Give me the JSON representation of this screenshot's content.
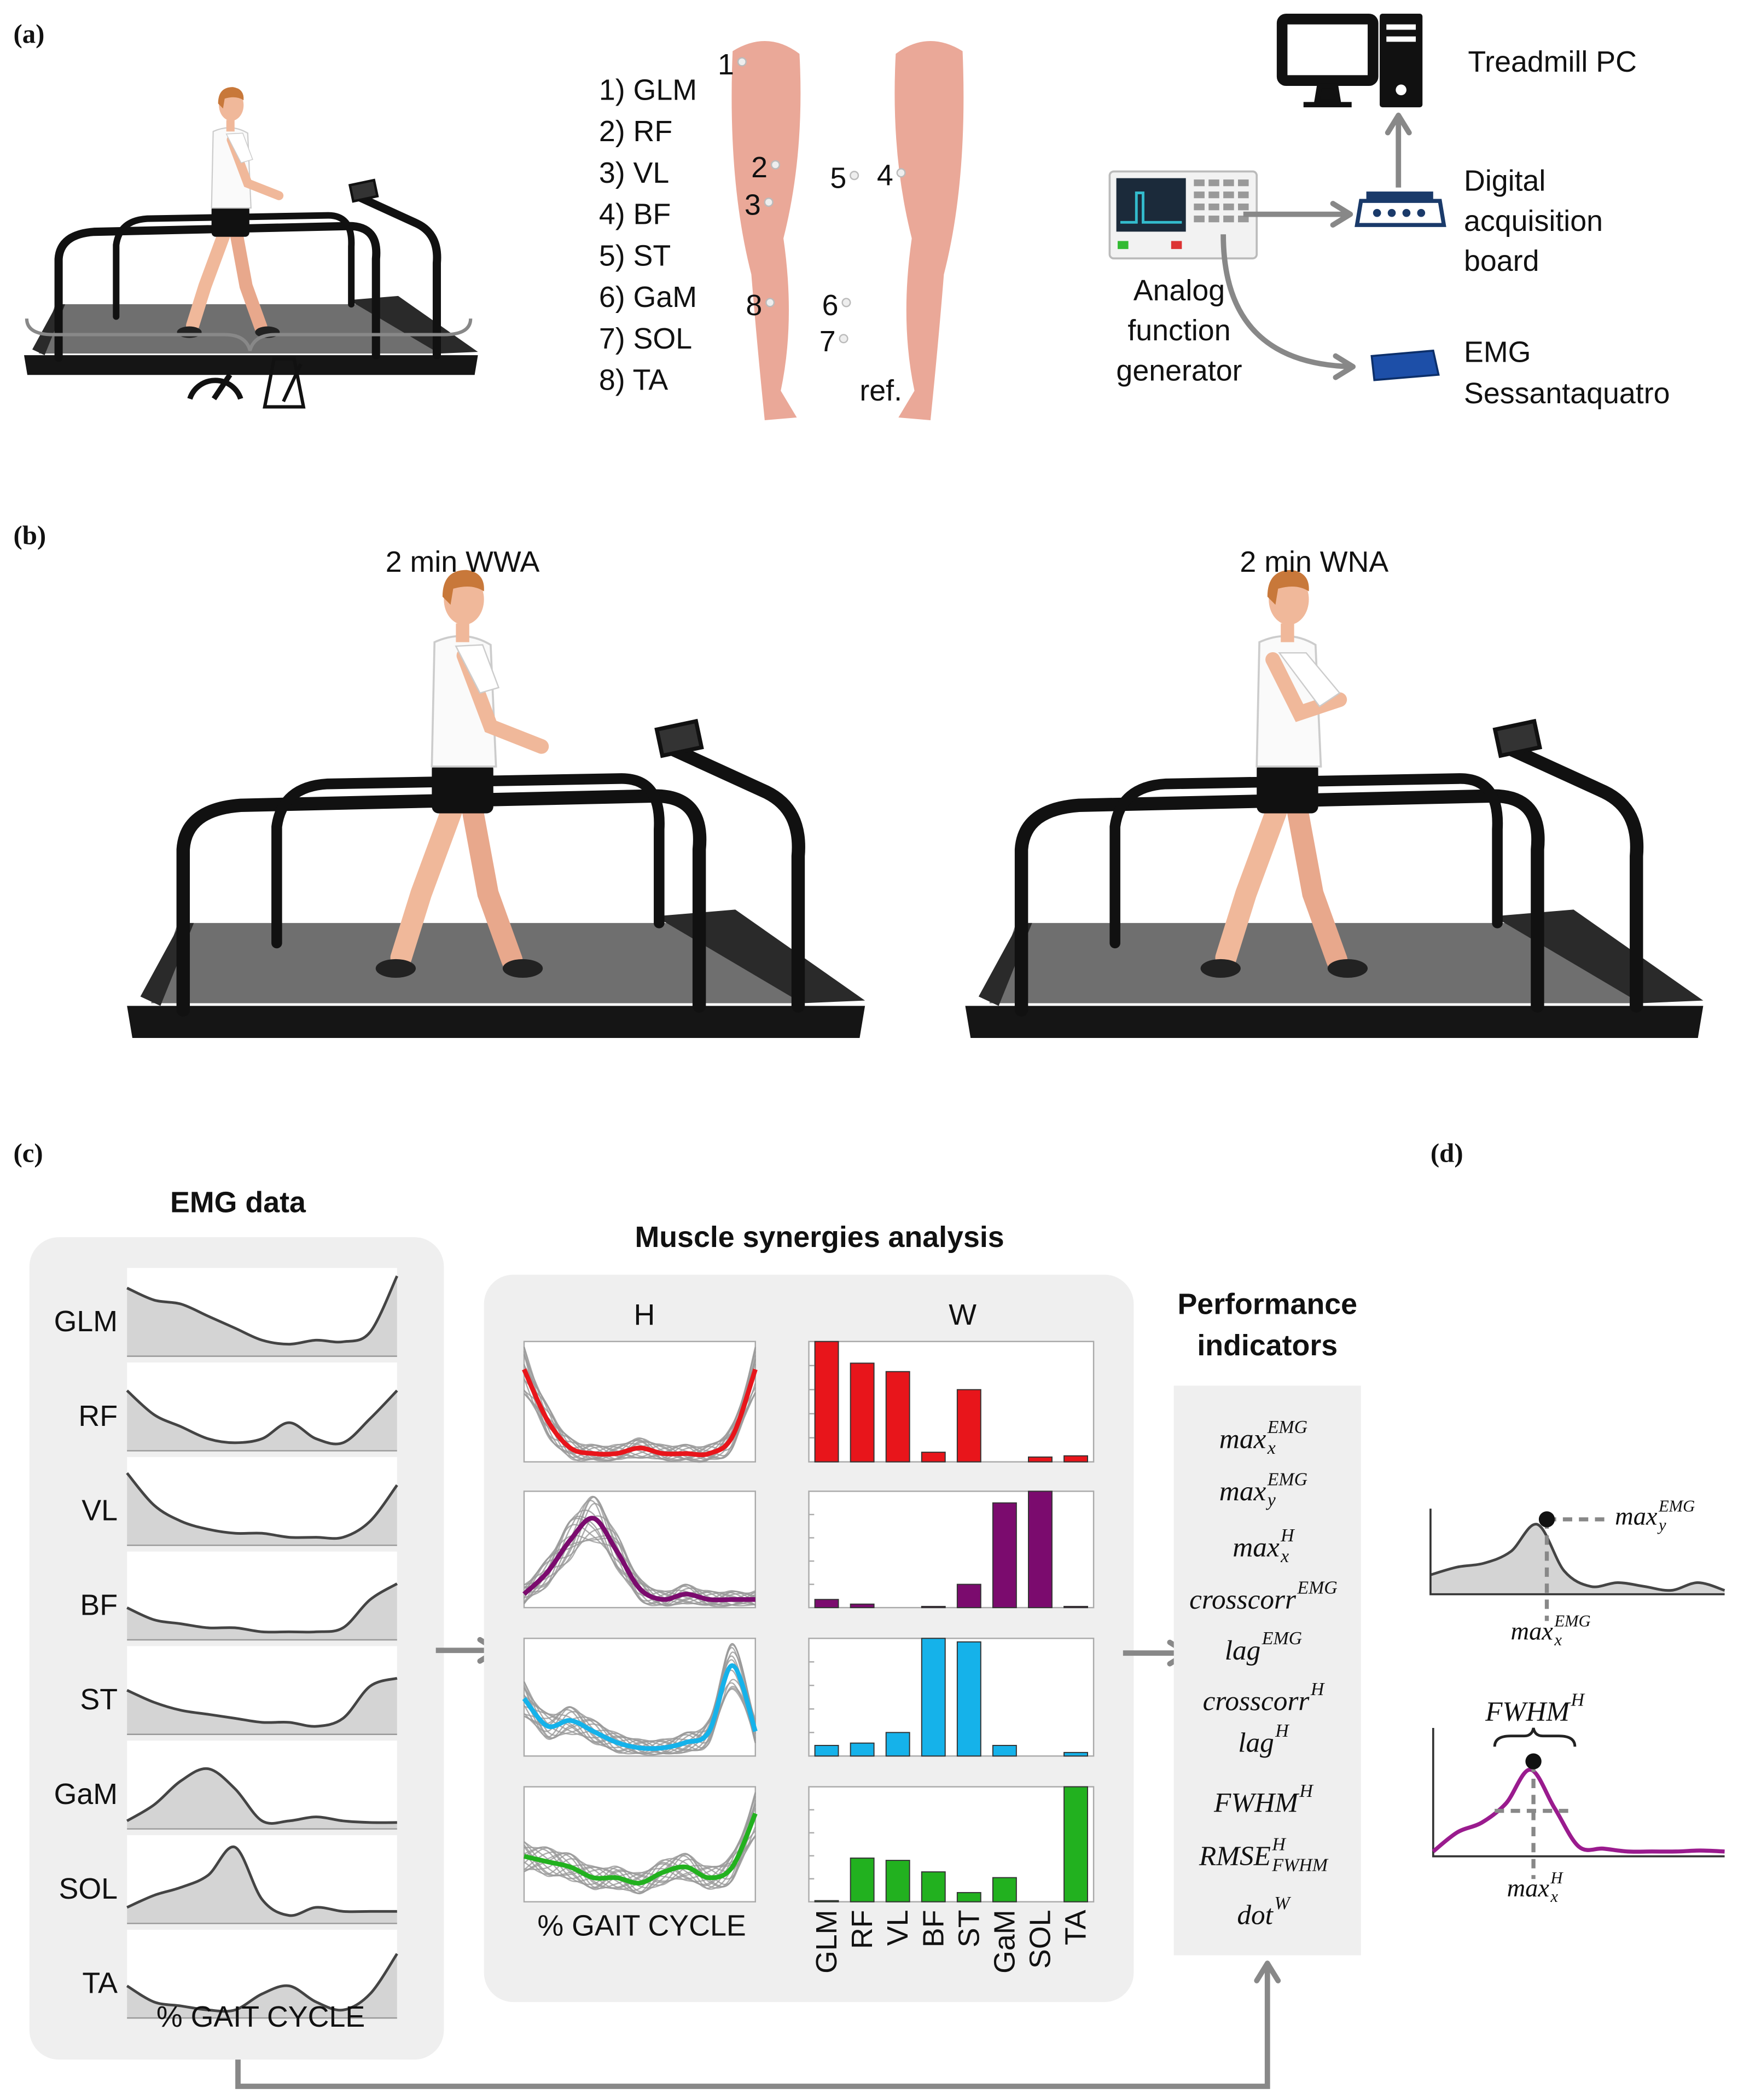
{
  "panels": {
    "a": "(a)",
    "b": "(b)",
    "c": "(c)",
    "d": "(d)"
  },
  "setup": {
    "muscles": [
      "1) GLM",
      "2) RF",
      "3) VL",
      "4) BF",
      "5) ST",
      "6) GaM",
      "7) SOL",
      "8) TA"
    ],
    "electrodes": [
      "1",
      "2",
      "3",
      "4",
      "5",
      "6",
      "7",
      "8"
    ],
    "reference": "ref.",
    "treadmill_pc": "Treadmill PC",
    "daq": [
      "Digital",
      "acquisition",
      "board"
    ],
    "generator": [
      "Analog",
      "function",
      "generator"
    ],
    "emg": [
      "EMG",
      "Sessantaquatro"
    ]
  },
  "conditions": [
    "2 min WWA",
    "2 min WNA"
  ],
  "emg_data": {
    "title": "EMG data",
    "muscles": [
      "GLM",
      "RF",
      "VL",
      "BF",
      "ST",
      "GaM",
      "SOL",
      "TA"
    ],
    "xlabel": "% GAIT CYCLE"
  },
  "synergies": {
    "title": "Muscle synergies analysis",
    "h_title": "H",
    "w_title": "W",
    "xlabel": "% GAIT CYCLE",
    "categories": [
      "GLM",
      "RF",
      "VL",
      "BF",
      "ST",
      "GaM",
      "SOL",
      "TA"
    ],
    "ylim": [
      0,
      1
    ],
    "series": [
      {
        "color": "#e8151b",
        "values": [
          1.0,
          0.82,
          0.75,
          0.08,
          0.6,
          0,
          0.04,
          0.05
        ]
      },
      {
        "color": "#7b0b6e",
        "values": [
          0.07,
          0.03,
          0,
          0.01,
          0.2,
          0.9,
          1.0,
          0.01
        ]
      },
      {
        "color": "#15b2ea",
        "values": [
          0.09,
          0.11,
          0.2,
          1.0,
          0.97,
          0.09,
          0,
          0.03
        ]
      },
      {
        "color": "#22b11f",
        "values": [
          0.01,
          0.38,
          0.36,
          0.26,
          0.08,
          0.21,
          0,
          1.0
        ]
      }
    ]
  },
  "indicators": {
    "title": [
      "Performance",
      "indicators"
    ],
    "items": [
      {
        "base": "max",
        "sub": "x",
        "sup": "EMG"
      },
      {
        "base": "max",
        "sub": "y",
        "sup": "EMG"
      },
      {
        "base": "max",
        "sub": "x",
        "sup": "H"
      },
      {
        "base": "crosscorr",
        "sup": "EMG"
      },
      {
        "base": "lag",
        "sup": "EMG"
      },
      {
        "base": "crosscorr",
        "sup": "H"
      },
      {
        "base": "lag",
        "sup": "H"
      },
      {
        "base": "FWHM",
        "sup": "H"
      },
      {
        "base": "RMSE",
        "sub": "FWHM",
        "sup": "H"
      },
      {
        "base": "dot",
        "sup": "W"
      }
    ]
  },
  "detail": {
    "emg_max_y": {
      "base": "max",
      "sub": "y",
      "sup": "EMG"
    },
    "emg_max_x": {
      "base": "max",
      "sub": "x",
      "sup": "EMG"
    },
    "fwhm": {
      "base": "FWHM",
      "sup": "H"
    },
    "h_max_x": {
      "base": "max",
      "sub": "x",
      "sup": "H"
    }
  }
}
